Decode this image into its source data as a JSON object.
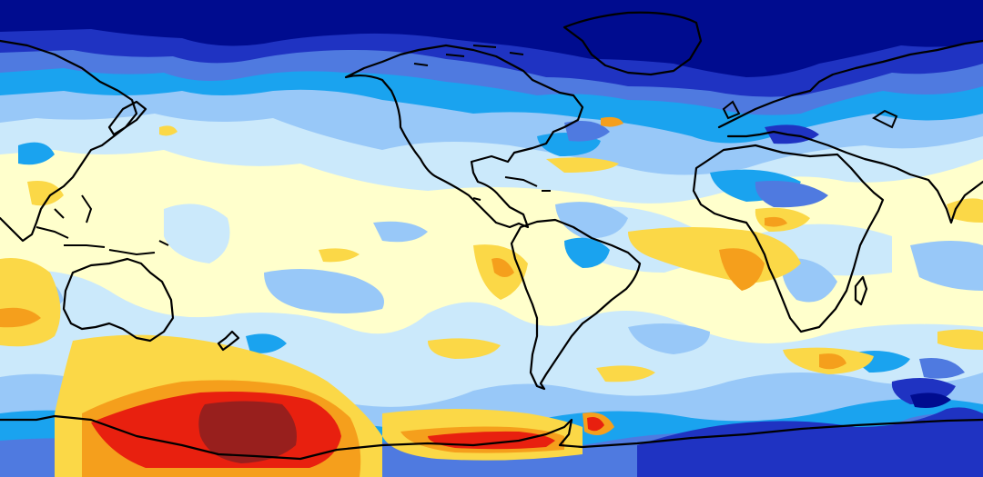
{
  "map": {
    "projection": "equirectangular",
    "central_longitude": -90,
    "extent": {
      "lon": [
        -270,
        90
      ],
      "lat": [
        -80,
        90
      ]
    },
    "coastlines": "black"
  },
  "colors": {
    "navy": "#000c8f",
    "royal": "#1f33c2",
    "medium": "#4f7ae0",
    "sky": "#1aa3ef",
    "pale_blue": "#98c8f8",
    "light_blue": "#cbe9fb",
    "cream": "#ffffcc",
    "yellow": "#fbd847",
    "orange": "#f59f1c",
    "red": "#e8200f",
    "dark_red": "#981f1d",
    "coastline": "#000000"
  },
  "legend": "none",
  "field_levels": [
    "navy",
    "royal",
    "medium",
    "sky",
    "pale_blue",
    "light_blue",
    "cream",
    "yellow",
    "orange",
    "red",
    "dark_red"
  ]
}
